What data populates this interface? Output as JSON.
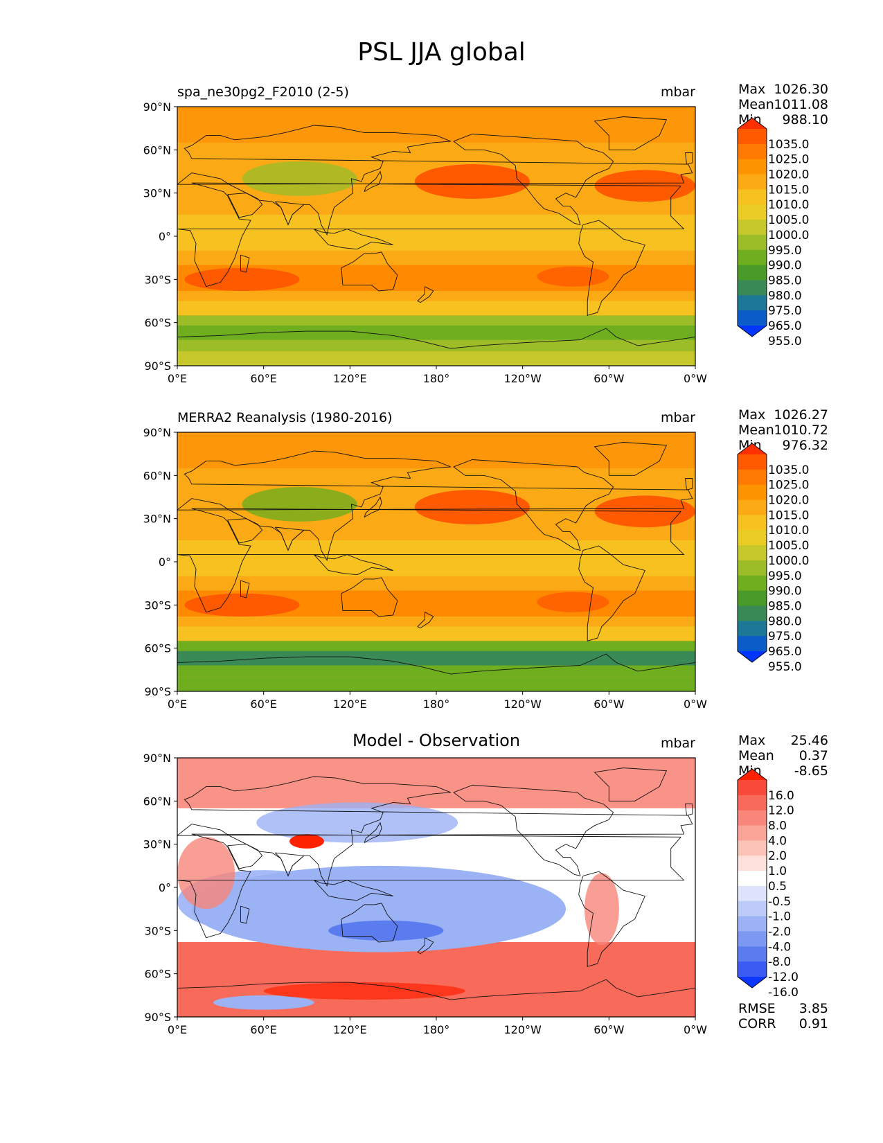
{
  "figure": {
    "title": "PSL JJA global"
  },
  "axes": {
    "lat_ticks": [
      "90°N",
      "60°N",
      "30°N",
      "0°",
      "30°S",
      "60°S",
      "90°S"
    ],
    "lon_ticks": [
      "0°E",
      "60°E",
      "120°E",
      "180°",
      "120°W",
      "60°W",
      "0°W"
    ]
  },
  "panels": [
    {
      "title": "spa_ne30pg2_F2010 (2-5)",
      "title_style": "left",
      "units": "mbar",
      "stats": [
        {
          "label": "Max",
          "value": "1026.30"
        },
        {
          "label": "Mean",
          "value": "1011.08"
        },
        {
          "label": "Min",
          "value": "988.10"
        }
      ],
      "colorbar": {
        "levels": [
          "1035.0",
          "1025.0",
          "1020.0",
          "1015.0",
          "1010.0",
          "1005.0",
          "1000.0",
          "995.0",
          "990.0",
          "985.0",
          "980.0",
          "975.0",
          "965.0",
          "955.0"
        ],
        "colors": [
          "#ff3000",
          "#ff5a00",
          "#ff7a00",
          "#fd9400",
          "#fba915",
          "#f7c21f",
          "#e9cc26",
          "#c6c72a",
          "#9dbd28",
          "#6fae1e",
          "#4a9a28",
          "#3a8a57",
          "#1c7896",
          "#0a5cc8",
          "#0036ff"
        ]
      }
    },
    {
      "title": "MERRA2 Reanalysis (1980-2016)",
      "title_style": "left",
      "units": "mbar",
      "stats": [
        {
          "label": "Max",
          "value": "1026.27"
        },
        {
          "label": "Mean",
          "value": "1010.72"
        },
        {
          "label": "Min",
          "value": "976.32"
        }
      ],
      "colorbar": {
        "levels": [
          "1035.0",
          "1025.0",
          "1020.0",
          "1015.0",
          "1010.0",
          "1005.0",
          "1000.0",
          "995.0",
          "990.0",
          "985.0",
          "980.0",
          "975.0",
          "965.0",
          "955.0"
        ],
        "colors": [
          "#ff3000",
          "#ff5a00",
          "#ff7a00",
          "#fd9400",
          "#fba915",
          "#f7c21f",
          "#e9cc26",
          "#c6c72a",
          "#9dbd28",
          "#6fae1e",
          "#4a9a28",
          "#3a8a57",
          "#1c7896",
          "#0a5cc8",
          "#0036ff"
        ]
      }
    },
    {
      "title": "Model - Observation",
      "title_style": "center",
      "units": "mbar",
      "stats": [
        {
          "label": "Max",
          "value": "25.46"
        },
        {
          "label": "Mean",
          "value": "0.37"
        },
        {
          "label": "Min",
          "value": "-8.65"
        }
      ],
      "colorbar": {
        "levels": [
          "16.0",
          "12.0",
          "8.0",
          "4.0",
          "2.0",
          "1.0",
          "0.5",
          "-0.5",
          "-1.0",
          "-2.0",
          "-4.0",
          "-8.0",
          "-12.0",
          "-16.0"
        ],
        "colors": [
          "#ff2200",
          "#f84a3a",
          "#f86a5a",
          "#f8867a",
          "#f9a497",
          "#fbc2b8",
          "#fde0da",
          "#ffffff",
          "#dde4fb",
          "#bccbf8",
          "#9bb2f5",
          "#7c98f1",
          "#5a7cef",
          "#3a5cf2",
          "#0a36ff"
        ]
      },
      "footer_stats": [
        {
          "label": "RMSE",
          "value": "3.85"
        },
        {
          "label": "CORR",
          "value": "0.91"
        }
      ]
    }
  ],
  "map_colors": {
    "model": {
      "background": "#fba915",
      "band_subtropics": "#ff8a00",
      "high_centers": "#ff5a00",
      "southern_ring": "#9dbd28",
      "southern_ring_core": "#6fae1e",
      "tropics": "#f7c21f",
      "antarctic": "#c6c72a"
    },
    "obs": {
      "background": "#fba915",
      "band_subtropics": "#ff8a00",
      "high_centers": "#ff5a00",
      "southern_ring": "#6fae1e",
      "southern_ring_core": "#3a8a57",
      "tropics": "#f7c21f",
      "antarctic": "#6fae1e"
    },
    "diff": {
      "background": "#ffffff",
      "positive": "#f8867a",
      "positive_strong": "#ff2200",
      "negative": "#9bb2f5",
      "negative_strong": "#5a7cef",
      "southern_band": "#f86a5a"
    }
  }
}
